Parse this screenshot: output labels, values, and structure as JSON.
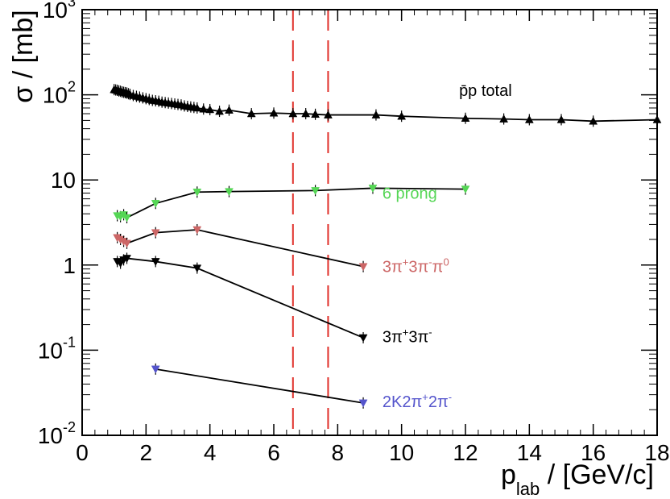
{
  "chart_data": {
    "type": "scatter",
    "xlabel_main": "p",
    "xlabel_sub": "lab",
    "xlabel_rest": " / [GeV/c]",
    "ylabel": "σ / [mb]",
    "x_range": [
      0,
      18
    ],
    "y_range": [
      0.01,
      1000
    ],
    "y_scale": "log",
    "x_ticks": [
      0,
      2,
      4,
      6,
      8,
      10,
      12,
      14,
      16,
      18
    ],
    "x_tick_labels": [
      "0",
      "2",
      "4",
      "6",
      "8",
      "10",
      "12",
      "14",
      "16",
      "18"
    ],
    "y_ticks": [
      {
        "value": 0.01,
        "base": "10",
        "exp": "-2"
      },
      {
        "value": 0.1,
        "base": "10",
        "exp": "-1"
      },
      {
        "value": 1,
        "base": "1",
        "exp": ""
      },
      {
        "value": 10,
        "base": "10",
        "exp": ""
      },
      {
        "value": 100,
        "base": "10",
        "exp": "2"
      },
      {
        "value": 1000,
        "base": "10",
        "exp": "3"
      }
    ],
    "vlines": [
      6.6,
      7.7
    ],
    "series": [
      {
        "name": "p̄p total",
        "label": "p̄p total",
        "color": "#000000",
        "marker": "triangle-up",
        "label_at": [
          11.8,
          113
        ],
        "x": [
          1.0,
          1.05,
          1.1,
          1.15,
          1.2,
          1.25,
          1.3,
          1.35,
          1.4,
          1.45,
          1.5,
          1.6,
          1.7,
          1.8,
          1.9,
          2.0,
          2.1,
          2.2,
          2.3,
          2.4,
          2.5,
          2.6,
          2.7,
          2.8,
          2.9,
          3.0,
          3.1,
          3.2,
          3.3,
          3.4,
          3.5,
          3.6,
          3.8,
          4.0,
          4.3,
          4.6,
          5.3,
          6.0,
          6.6,
          7.0,
          7.3,
          7.7,
          9.2,
          10.0,
          12.0,
          13.2,
          14.0,
          15.0,
          16.0,
          18.0
        ],
        "y": [
          115,
          114,
          113,
          111,
          110,
          108,
          107,
          106,
          105,
          103,
          101,
          98,
          96,
          94,
          92,
          90,
          88,
          86,
          85,
          84,
          82,
          81,
          80,
          79,
          78,
          77,
          76,
          74,
          73,
          72,
          71,
          70,
          68,
          67,
          64,
          66,
          60,
          61,
          60,
          60,
          59,
          58,
          58,
          56,
          53,
          52,
          51,
          51,
          49,
          51
        ]
      },
      {
        "name": "6 prong",
        "label": "6 prong",
        "color": "#55d655",
        "marker": "triangle-down",
        "label_at": [
          9.4,
          7.0
        ],
        "x": [
          1.1,
          1.2,
          1.3,
          1.4,
          2.3,
          3.6,
          4.6,
          7.3,
          9.1,
          12.0
        ],
        "y": [
          3.8,
          3.7,
          3.9,
          3.6,
          5.3,
          7.2,
          7.3,
          7.5,
          8.0,
          7.8
        ]
      },
      {
        "name": "3π+3π-π0",
        "label_base": "3π",
        "label_parts": [
          [
            "3π",
            ""
          ],
          [
            "+",
            "sup"
          ],
          [
            "3π",
            ""
          ],
          [
            "-",
            "sup"
          ],
          [
            "π",
            ""
          ],
          [
            "0",
            "sup"
          ]
        ],
        "color": "#cc6666",
        "marker": "triangle-down",
        "label_at": [
          9.4,
          0.96
        ],
        "x": [
          1.1,
          1.2,
          1.3,
          1.4,
          2.3,
          3.6,
          8.8
        ],
        "y": [
          2.1,
          2.0,
          1.9,
          1.8,
          2.4,
          2.6,
          0.96
        ]
      },
      {
        "name": "3π+3π-",
        "label_parts": [
          [
            "3π",
            ""
          ],
          [
            "+",
            "sup"
          ],
          [
            "3π",
            ""
          ],
          [
            "-",
            "sup"
          ]
        ],
        "color": "#000000",
        "marker": "triangle-down",
        "label_at": [
          9.4,
          0.145
        ],
        "x": [
          1.1,
          1.2,
          1.3,
          1.4,
          2.3,
          3.6,
          8.8
        ],
        "y": [
          1.1,
          1.05,
          1.15,
          1.2,
          1.1,
          0.92,
          0.14
        ]
      },
      {
        "name": "2K2π+2π-",
        "label_parts": [
          [
            "2K2π",
            ""
          ],
          [
            "+",
            "sup"
          ],
          [
            "2π",
            ""
          ],
          [
            "-",
            "sup"
          ]
        ],
        "color": "#5555cc",
        "marker": "triangle-down",
        "label_at": [
          9.4,
          0.025
        ],
        "x": [
          2.3,
          8.8
        ],
        "y": [
          0.06,
          0.024
        ]
      }
    ]
  }
}
